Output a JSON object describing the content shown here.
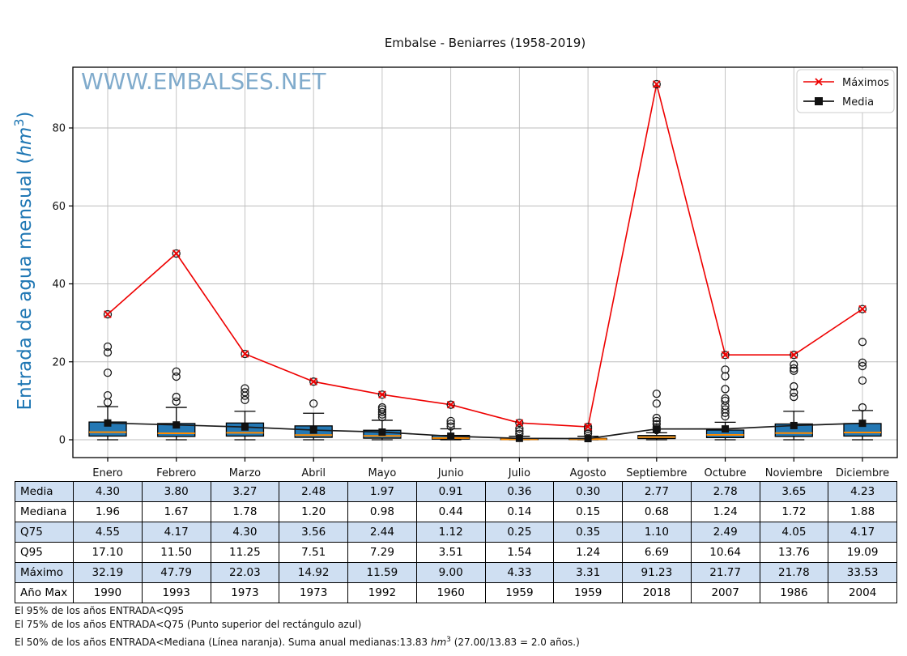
{
  "watermark": "WWW.EMBALSES.NET",
  "chart_data": {
    "type": "boxplot",
    "title": "Embalse - Beniarres (1958-2019)",
    "ylabel_text": "Entrada de agua mensual (",
    "ylabel_unit": "hm",
    "ylabel_sup": "3",
    "ylabel_close": ")",
    "yticks": [
      0,
      20,
      40,
      60,
      80
    ],
    "ylim": [
      -4.6,
      95.8
    ],
    "grid": true,
    "legend_position": "upper right",
    "categories": [
      "Enero",
      "Febrero",
      "Marzo",
      "Abril",
      "Mayo",
      "Junio",
      "Julio",
      "Agosto",
      "Septiembre",
      "Octubre",
      "Noviembre",
      "Diciembre"
    ],
    "legend": [
      {
        "label": "Máximos",
        "color": "#ee0000",
        "marker": "x"
      },
      {
        "label": "Media",
        "color": "#1a1a1a",
        "marker": "square"
      }
    ],
    "series": [
      {
        "name": "Máximos",
        "values": [
          32.19,
          47.79,
          22.03,
          14.92,
          11.59,
          9.0,
          4.33,
          3.31,
          91.23,
          21.77,
          21.78,
          33.53
        ]
      },
      {
        "name": "Media",
        "values": [
          4.3,
          3.8,
          3.27,
          2.48,
          1.97,
          0.91,
          0.36,
          0.3,
          2.77,
          2.78,
          3.65,
          4.23
        ]
      }
    ],
    "box_stats": {
      "median": [
        1.96,
        1.67,
        1.78,
        1.2,
        0.98,
        0.44,
        0.14,
        0.15,
        0.68,
        1.24,
        1.72,
        1.88
      ],
      "q75": [
        4.55,
        4.17,
        4.3,
        3.56,
        2.44,
        1.12,
        0.25,
        0.35,
        1.1,
        2.49,
        4.05,
        4.17
      ],
      "q95": [
        17.1,
        11.5,
        11.25,
        7.51,
        7.29,
        3.51,
        1.54,
        1.24,
        6.69,
        10.64,
        13.76,
        19.09
      ],
      "q25_est": [
        0.95,
        0.85,
        0.95,
        0.62,
        0.4,
        0.18,
        0.06,
        0.06,
        0.3,
        0.55,
        0.85,
        0.95
      ],
      "whisker_high_est": [
        8.5,
        8.3,
        7.3,
        6.8,
        5.0,
        2.8,
        0.9,
        0.9,
        1.8,
        4.5,
        7.3,
        7.5
      ],
      "whisker_low_est": [
        0,
        0,
        0,
        0,
        0,
        0,
        0,
        0,
        0,
        0,
        0,
        0
      ],
      "outliers_est": [
        [
          9.6,
          11.4,
          17.2,
          22.4,
          23.9
        ],
        [
          9.8,
          11.0,
          16.2,
          17.5
        ],
        [
          10.2,
          11.3,
          12.2,
          13.2
        ],
        [
          9.3
        ],
        [
          5.8,
          6.5,
          7.1,
          7.8,
          8.3
        ],
        [
          3.4,
          4.1,
          4.8
        ],
        [
          1.5,
          2.2,
          2.9
        ],
        [
          1.6,
          2.2,
          2.8
        ],
        [
          2.5,
          3.2,
          4.0,
          4.8,
          5.6,
          9.3,
          11.8
        ],
        [
          6.0,
          6.9,
          7.8,
          8.7,
          10.0,
          10.6,
          13.0,
          16.3,
          18.0
        ],
        [
          11.0,
          12.1,
          13.7,
          17.7,
          18.3,
          19.3
        ],
        [
          8.3,
          15.2,
          18.9,
          19.8,
          25.1
        ]
      ],
      "box_color": "#2478b4",
      "median_color": "#ff8c00"
    }
  },
  "table": {
    "row_labels": [
      "Media",
      "Mediana",
      "Q75",
      "Q95",
      "Máximo",
      "Año Max"
    ],
    "columns": [
      "Enero",
      "Febrero",
      "Marzo",
      "Abril",
      "Mayo",
      "Junio",
      "Julio",
      "Agosto",
      "Septiembre",
      "Octubre",
      "Noviembre",
      "Diciembre"
    ],
    "rows": [
      [
        "4.30",
        "3.80",
        "3.27",
        "2.48",
        "1.97",
        "0.91",
        "0.36",
        "0.30",
        "2.77",
        "2.78",
        "3.65",
        "4.23"
      ],
      [
        "1.96",
        "1.67",
        "1.78",
        "1.20",
        "0.98",
        "0.44",
        "0.14",
        "0.15",
        "0.68",
        "1.24",
        "1.72",
        "1.88"
      ],
      [
        "4.55",
        "4.17",
        "4.30",
        "3.56",
        "2.44",
        "1.12",
        "0.25",
        "0.35",
        "1.10",
        "2.49",
        "4.05",
        "4.17"
      ],
      [
        "17.10",
        "11.50",
        "11.25",
        "7.51",
        "7.29",
        "3.51",
        "1.54",
        "1.24",
        "6.69",
        "10.64",
        "13.76",
        "19.09"
      ],
      [
        "32.19",
        "47.79",
        "22.03",
        "14.92",
        "11.59",
        "9.00",
        "4.33",
        "3.31",
        "91.23",
        "21.77",
        "21.78",
        "33.53"
      ],
      [
        "1990",
        "1993",
        "1973",
        "1973",
        "1992",
        "1960",
        "1959",
        "1959",
        "2018",
        "2007",
        "1986",
        "2004"
      ]
    ]
  },
  "footnotes": {
    "line1": "El 95% de los años ENTRADA<Q95",
    "line2": "El 75% de los años ENTRADA<Q75 (Punto superior del rectángulo azul)",
    "line3_before": "El 50% de los años ENTRADA<Mediana (Línea naranja). Suma anual medianas:13.83 ",
    "line3_unit": "hm",
    "line3_sup": "3",
    "line3_after": " (27.00/13.83 = 2.0 años.)"
  },
  "colors": {
    "box_fill": "#2478b4",
    "median_line": "#ff8c00",
    "maximos_line": "#ee0000",
    "media_line": "#1a1a1a",
    "table_row_highlight": "#cfdff2",
    "axis_label_blue": "#1f77b4",
    "watermark_blue": "#6b9dc4",
    "grid_gray": "#bdbdbd"
  }
}
